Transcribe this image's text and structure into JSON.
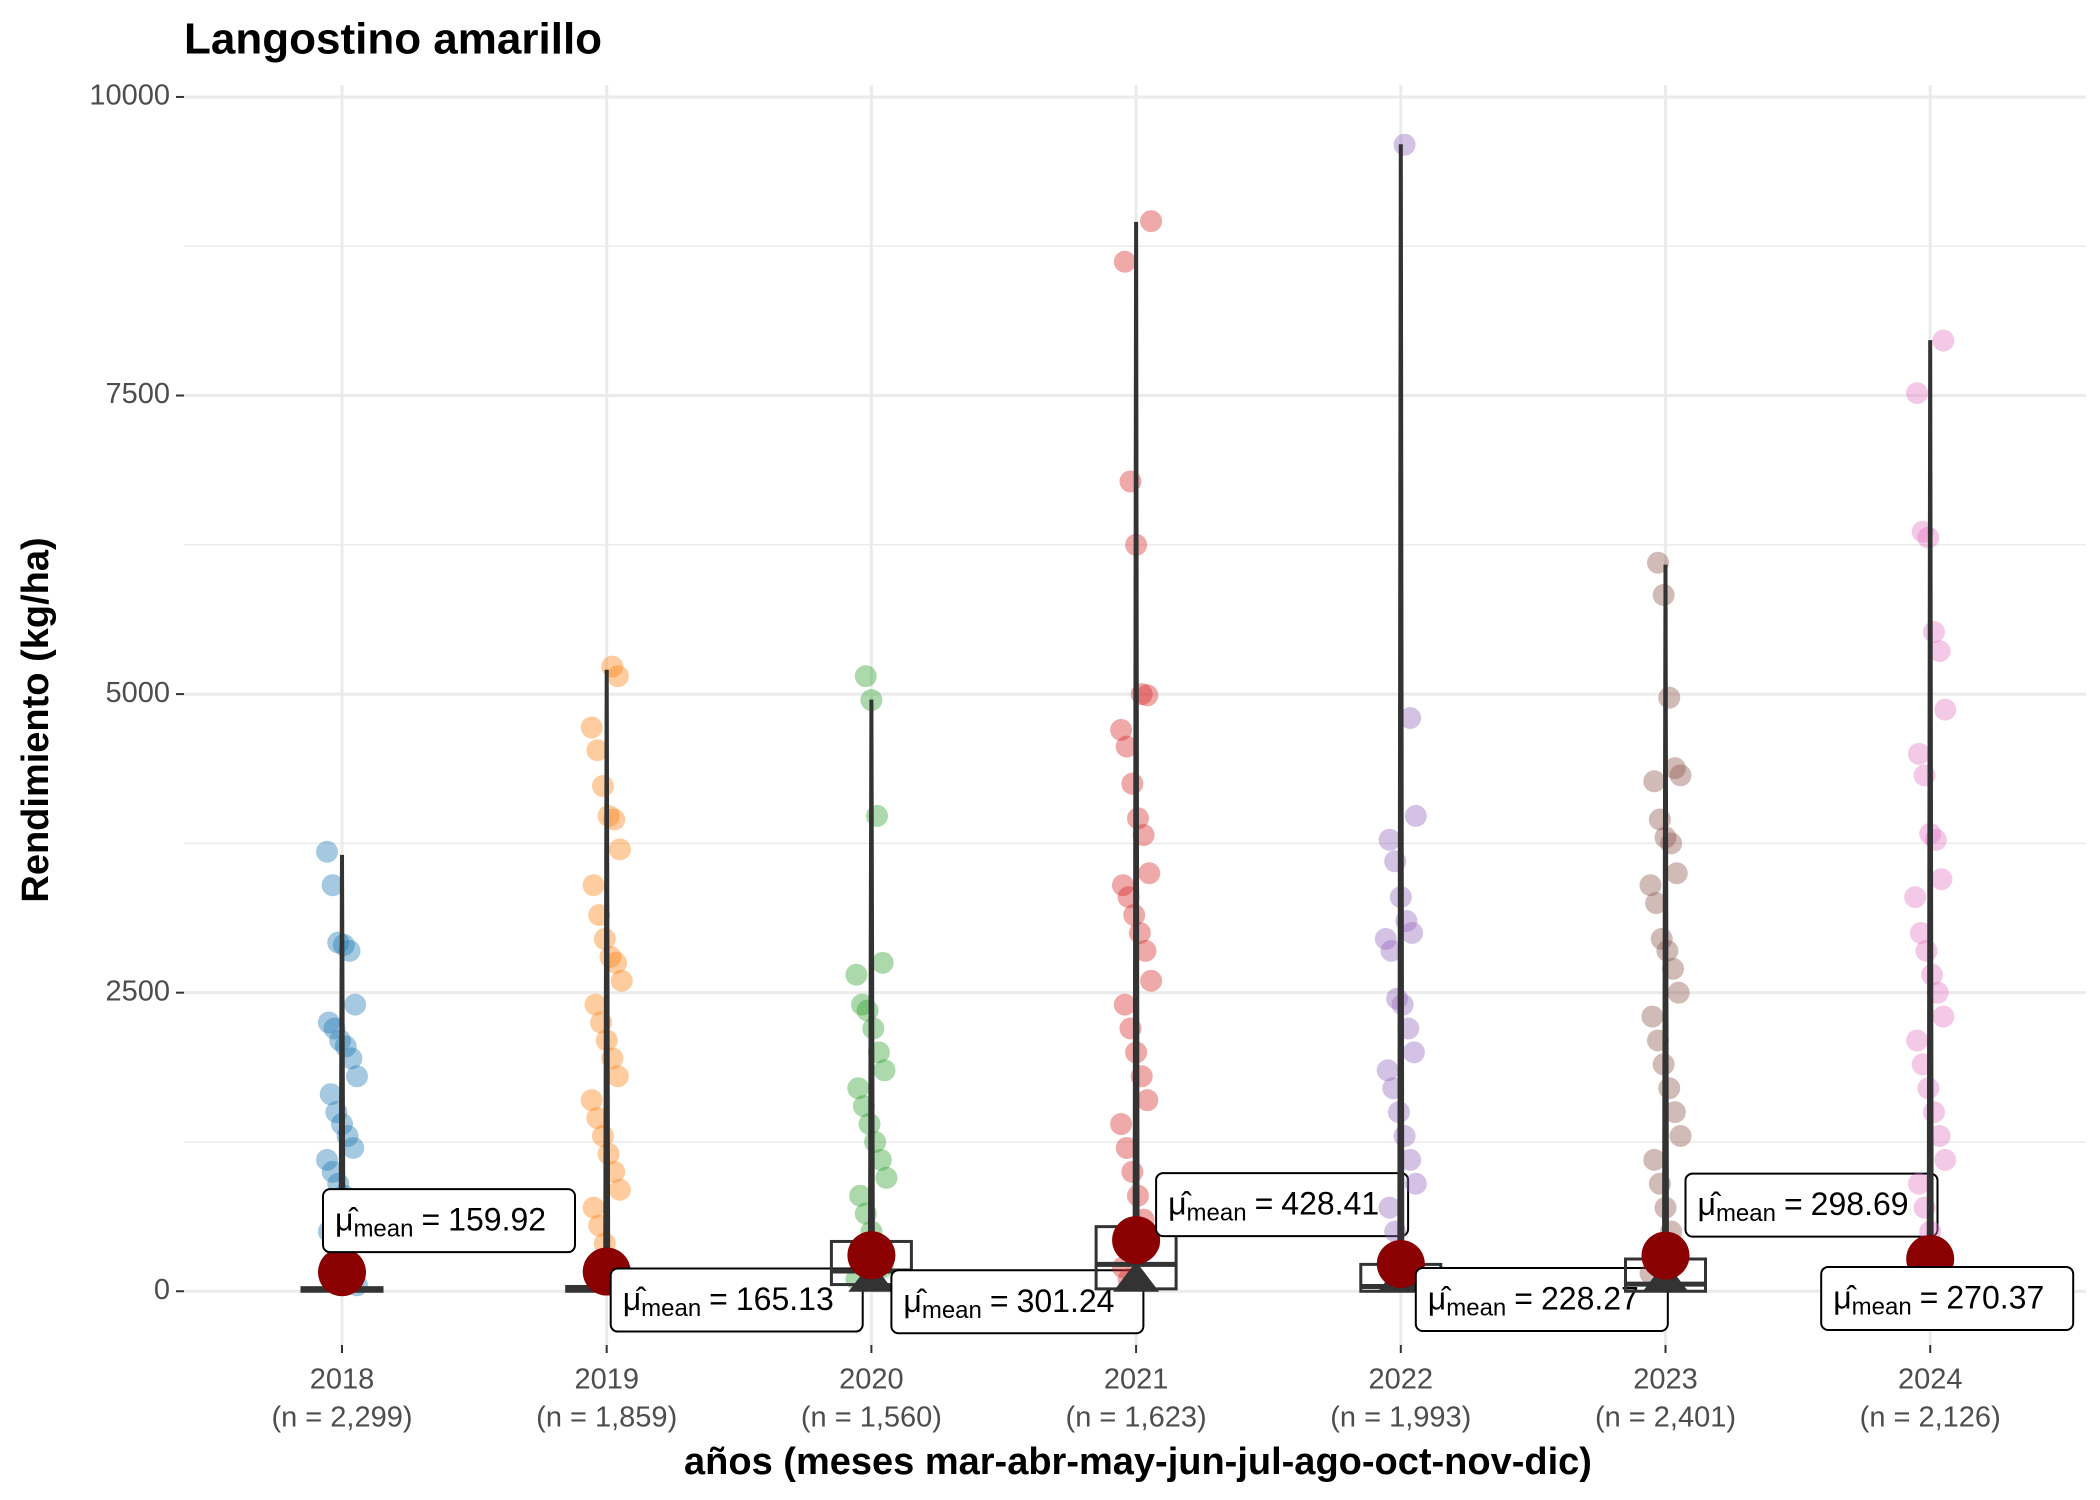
{
  "chart_data": {
    "type": "violin-box-jitter",
    "title": "Langostino amarillo",
    "x_label": "años (meses mar-abr-may-jun-jul-ago-oct-nov-dic)",
    "y_label": "Rendimiento (kg/ha)",
    "categories": [
      "2018",
      "2019",
      "2020",
      "2021",
      "2022",
      "2023",
      "2024"
    ],
    "n_labels": [
      "(n = 2,299)",
      "(n = 1,859)",
      "(n = 1,560)",
      "(n = 1,623)",
      "(n = 1,993)",
      "(n = 2,401)",
      "(n = 2,126)"
    ],
    "ylim": [
      -450,
      10100
    ],
    "yticks": [
      0,
      2500,
      5000,
      7500,
      10000
    ],
    "y_minor_ticks": [
      1250,
      3750,
      6250,
      8750
    ],
    "grid": true,
    "mean_symbol": "μ̂",
    "mean_subscript": "mean",
    "mean_equals": "=",
    "mean_color": "#8b0000",
    "groups": [
      {
        "color": "#1f77b4",
        "mean": 159.92,
        "mean_label": "159.92",
        "box": {
          "q1": 0,
          "median": 10,
          "q3": 30
        },
        "violin": [
          0,
          3650
        ],
        "points": [
          3680,
          3400,
          2920,
          2900,
          2850,
          2400,
          2250,
          2200,
          2100,
          2050,
          1950,
          1800,
          1650,
          1500,
          1400,
          1300,
          1200,
          1100,
          1000,
          900,
          800,
          700,
          600,
          500,
          400,
          300,
          200,
          100,
          50
        ]
      },
      {
        "color": "#ff7f0e",
        "mean": 165.13,
        "mean_label": "165.13",
        "box": {
          "q1": 0,
          "median": 15,
          "q3": 40
        },
        "violin": [
          0,
          5200
        ],
        "points": [
          5230,
          5150,
          4720,
          4530,
          4230,
          3980,
          3950,
          3700,
          3400,
          3150,
          2950,
          2800,
          2750,
          2600,
          2400,
          2250,
          2100,
          1950,
          1800,
          1600,
          1450,
          1300,
          1150,
          1000,
          850,
          700,
          550,
          400,
          250,
          100
        ]
      },
      {
        "color": "#2ca02c",
        "mean": 301.24,
        "mean_label": "301.24",
        "box": {
          "q1": 56,
          "median": 170,
          "q3": 417
        },
        "violin": [
          0,
          4950
        ],
        "points": [
          5150,
          4950,
          3980,
          2750,
          2650,
          2400,
          2350,
          2200,
          2000,
          1850,
          1700,
          1550,
          1400,
          1250,
          1100,
          950,
          800,
          650,
          500,
          350,
          200,
          100
        ]
      },
      {
        "color": "#d62728",
        "mean": 428.41,
        "mean_label": "428.41",
        "box": {
          "q1": 20,
          "median": 225,
          "q3": 541
        },
        "violin": [
          0,
          8950
        ],
        "points": [
          8960,
          8620,
          6780,
          6250,
          5000,
          4990,
          4700,
          4560,
          4250,
          3960,
          3820,
          3500,
          3400,
          3300,
          3150,
          3000,
          2850,
          2600,
          2400,
          2200,
          2000,
          1800,
          1600,
          1400,
          1200,
          1000,
          800,
          600,
          400,
          200,
          100
        ]
      },
      {
        "color": "#9467bd",
        "mean": 228.27,
        "mean_label": "228.27",
        "box": {
          "q1": 0,
          "median": 40,
          "q3": 225
        },
        "violin": [
          0,
          9600
        ],
        "points": [
          9600,
          4800,
          3980,
          3780,
          3600,
          3300,
          3100,
          3000,
          2950,
          2850,
          2450,
          2400,
          2200,
          2000,
          1850,
          1700,
          1500,
          1300,
          1100,
          900,
          700,
          500,
          300,
          150
        ]
      },
      {
        "color": "#8c564b",
        "mean": 298.69,
        "mean_label": "298.69",
        "box": {
          "q1": 0,
          "median": 60,
          "q3": 270
        },
        "violin": [
          0,
          6080
        ],
        "points": [
          6100,
          5830,
          4970,
          4380,
          4320,
          4270,
          3950,
          3800,
          3750,
          3500,
          3400,
          3250,
          2950,
          2850,
          2700,
          2500,
          2300,
          2100,
          1900,
          1700,
          1500,
          1300,
          1100,
          900,
          700,
          500,
          300,
          150
        ]
      },
      {
        "color": "#e377c2",
        "mean": 270.37,
        "mean_label": "270.37",
        "box": {
          "q1": 0,
          "median": 10,
          "q3": 30
        },
        "violin": [
          0,
          7960
        ],
        "points": [
          7960,
          7520,
          6360,
          6310,
          5520,
          5360,
          4870,
          4500,
          4320,
          3830,
          3780,
          3450,
          3300,
          3000,
          2850,
          2650,
          2500,
          2300,
          2100,
          1900,
          1700,
          1500,
          1300,
          1100,
          900,
          700,
          500,
          300,
          150
        ]
      }
    ]
  }
}
